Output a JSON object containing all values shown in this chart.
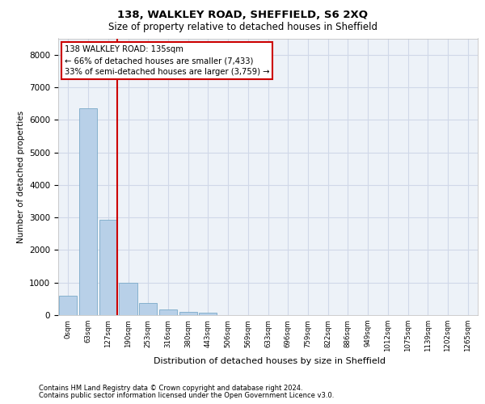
{
  "title1": "138, WALKLEY ROAD, SHEFFIELD, S6 2XQ",
  "title2": "Size of property relative to detached houses in Sheffield",
  "xlabel": "Distribution of detached houses by size in Sheffield",
  "ylabel": "Number of detached properties",
  "categories": [
    "0sqm",
    "63sqm",
    "127sqm",
    "190sqm",
    "253sqm",
    "316sqm",
    "380sqm",
    "443sqm",
    "506sqm",
    "569sqm",
    "633sqm",
    "696sqm",
    "759sqm",
    "822sqm",
    "886sqm",
    "949sqm",
    "1012sqm",
    "1075sqm",
    "1139sqm",
    "1202sqm",
    "1265sqm"
  ],
  "bar_values": [
    600,
    6350,
    2920,
    990,
    380,
    170,
    100,
    80,
    0,
    0,
    0,
    0,
    0,
    0,
    0,
    0,
    0,
    0,
    0,
    0,
    0
  ],
  "bar_color": "#b8d0e8",
  "bar_edge_color": "#7aaac8",
  "grid_color": "#d0d8e8",
  "background_color": "#edf2f8",
  "annotation_text": "138 WALKLEY ROAD: 135sqm\n← 66% of detached houses are smaller (7,433)\n33% of semi-detached houses are larger (3,759) →",
  "vline_color": "#cc0000",
  "box_color": "#cc0000",
  "ylim": [
    0,
    8500
  ],
  "yticks": [
    0,
    1000,
    2000,
    3000,
    4000,
    5000,
    6000,
    7000,
    8000
  ],
  "footer_line1": "Contains HM Land Registry data © Crown copyright and database right 2024.",
  "footer_line2": "Contains public sector information licensed under the Open Government Licence v3.0."
}
